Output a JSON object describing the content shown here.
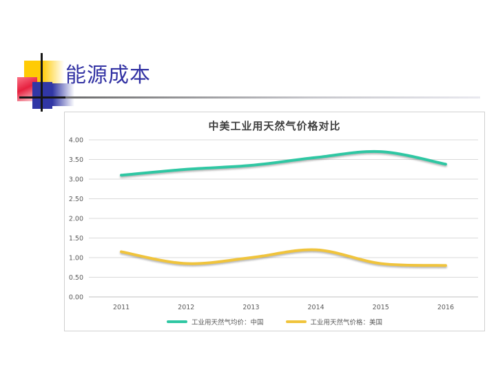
{
  "slide": {
    "title": "能源成本"
  },
  "colors": {
    "title_blue": "#3131a3",
    "decor_yellow": "#ffcb05",
    "decor_red": "#e6213f",
    "decor_blue": "#3137a5",
    "gridline_gray": "#d9d9d9",
    "axis_line_gray": "#bfbfbf",
    "axis_text_gray": "#595959",
    "series_china_green": "#2fc7a3",
    "series_us_gold": "#f0c43c"
  },
  "chart_data": {
    "type": "line",
    "title": "中美工业用天然气价格对比",
    "categories": [
      "2011",
      "2012",
      "2013",
      "2014",
      "2015",
      "2016"
    ],
    "series": [
      {
        "name": "工业用天然气均价：中国",
        "color": "#2fc7a3",
        "values": [
          3.1,
          3.25,
          3.35,
          3.55,
          3.7,
          3.38
        ]
      },
      {
        "name": "工业用天然气价格：美国",
        "color": "#f0c43c",
        "values": [
          1.15,
          0.85,
          1.0,
          1.2,
          0.85,
          0.8
        ]
      }
    ],
    "ylim": [
      0.0,
      4.0
    ],
    "yticks": [
      {
        "value": 0.0,
        "label": "0.00"
      },
      {
        "value": 0.5,
        "label": "0.50"
      },
      {
        "value": 1.0,
        "label": "1.00"
      },
      {
        "value": 1.5,
        "label": "1.50"
      },
      {
        "value": 2.0,
        "label": "2.00"
      },
      {
        "value": 2.5,
        "label": "2.50"
      },
      {
        "value": 3.0,
        "label": "3.00"
      },
      {
        "value": 3.5,
        "label": "3.50"
      },
      {
        "value": 4.0,
        "label": "4.00"
      }
    ],
    "xlabel": "",
    "ylabel": "",
    "grid": true,
    "smooth": true,
    "line_width": 4,
    "legend_position": "bottom"
  }
}
